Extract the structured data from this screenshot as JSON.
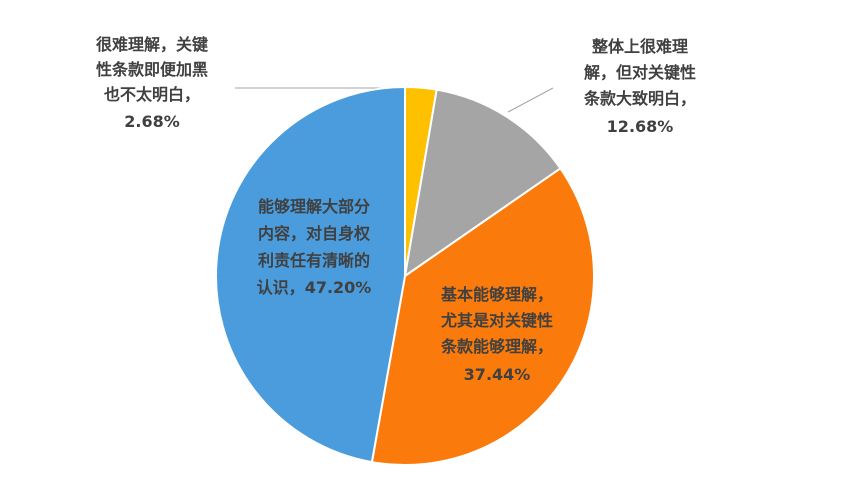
{
  "chart_data": {
    "type": "pie",
    "categories": [
      "很难理解，关键性条款即便加黑也不太明白，",
      "整体上很难理解，但对关键性条款大致明白，",
      "基本能够理解，尤其是对关键性条款能够理解，",
      "能够理解大部分内容，对自身权利责任有清晰的认识，"
    ],
    "values": [
      2.68,
      12.68,
      37.44,
      47.2
    ],
    "value_labels": [
      "2.68%",
      "12.68%",
      "37.44%",
      "47.20%"
    ],
    "colors": [
      "#FFC000",
      "#A5A5A5",
      "#FA7B0C",
      "#4A9CDC"
    ]
  }
}
